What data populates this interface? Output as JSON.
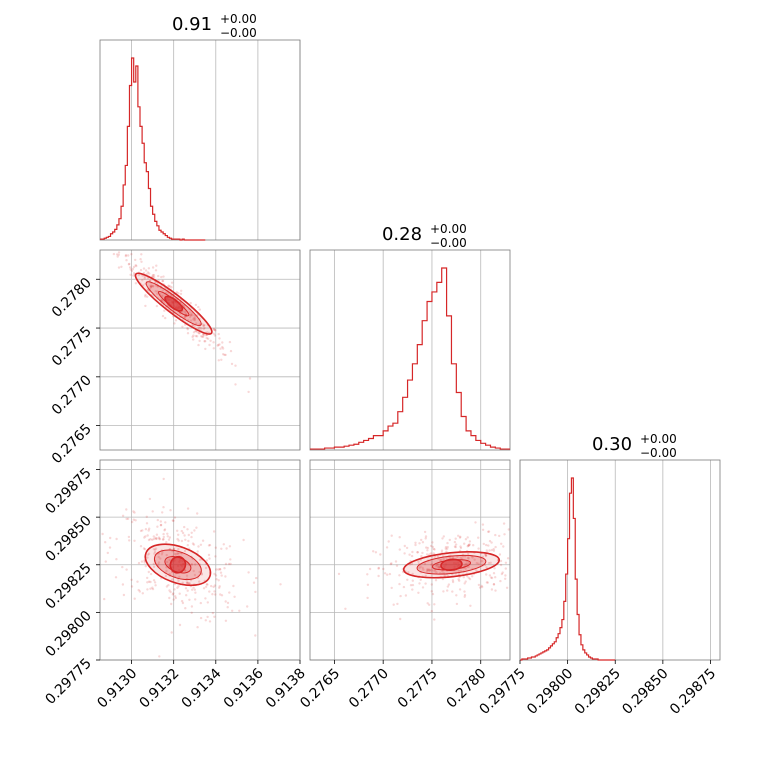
{
  "chart_data": {
    "type": "scatter",
    "plot_kind": "corner",
    "grid": true,
    "color": "#d62728",
    "parameters": [
      {
        "title_value": "0.91",
        "upper": "+0.00",
        "lower": "−0.00",
        "range": [
          0.91285,
          0.9138
        ],
        "ticks": [
          0.913,
          0.9132,
          0.9134,
          0.9136,
          0.9138
        ],
        "tick_labels": [
          "0.9130",
          "0.9132",
          "0.9134",
          "0.9136",
          "0.9138"
        ]
      },
      {
        "title_value": "0.28",
        "upper": "+0.00",
        "lower": "−0.00",
        "range": [
          0.27625,
          0.2783
        ],
        "ticks": [
          0.2765,
          0.277,
          0.2775,
          0.278
        ],
        "tick_labels": [
          "0.2765",
          "0.2770",
          "0.2775",
          "0.2780"
        ]
      },
      {
        "title_value": "0.30",
        "upper": "+0.00",
        "lower": "−0.00",
        "range": [
          0.29775,
          0.2988
        ],
        "ticks": [
          0.29775,
          0.298,
          0.29825,
          0.2985,
          0.29875
        ],
        "tick_labels": [
          "0.29775",
          "0.29800",
          "0.29825",
          "0.29850",
          "0.29875"
        ]
      }
    ],
    "histograms": [
      {
        "param": 0,
        "bin_width": 1e-05,
        "start": 0.91285,
        "counts": [
          1,
          1,
          2,
          3,
          4,
          7,
          9,
          12,
          17,
          24,
          38,
          62,
          84,
          128,
          174,
          205,
          178,
          196,
          150,
          128,
          109,
          87,
          77,
          58,
          38,
          29,
          21,
          16,
          11,
          9,
          7,
          5,
          3,
          2,
          1,
          1,
          1,
          1,
          0,
          1,
          0,
          0,
          0,
          0,
          0,
          0,
          0,
          0,
          0,
          0
        ]
      },
      {
        "param": 1,
        "bin_width": 5e-05,
        "start": 0.27625,
        "counts": [
          1,
          1,
          1,
          2,
          2,
          3,
          3,
          4,
          5,
          6,
          8,
          10,
          12,
          15,
          15,
          20,
          25,
          28,
          40,
          55,
          73,
          90,
          110,
          135,
          155,
          165,
          175,
          190,
          140,
          90,
          60,
          35,
          20,
          15,
          10,
          7,
          5,
          3,
          2,
          1,
          1
        ]
      },
      {
        "param": 2,
        "bin_width": 1e-05,
        "start": 0.29775,
        "counts": [
          0,
          1,
          1,
          1,
          2,
          2,
          3,
          3,
          4,
          5,
          6,
          7,
          8,
          9,
          10,
          12,
          14,
          16,
          18,
          22,
          26,
          32,
          40,
          58,
          85,
          120,
          165,
          180,
          140,
          80,
          45,
          25,
          15,
          10,
          7,
          5,
          3,
          2,
          1,
          1,
          1,
          0,
          0,
          0,
          0,
          0,
          0,
          0,
          0,
          0
        ]
      }
    ],
    "correlations": [
      {
        "x_param": 0,
        "y_param": 1,
        "center": [
          0.9132,
          0.27775
        ],
        "corr": -0.95
      },
      {
        "x_param": 0,
        "y_param": 2,
        "center": [
          0.91322,
          0.29825
        ],
        "corr": -0.45
      },
      {
        "x_param": 1,
        "y_param": 2,
        "center": [
          0.2777,
          0.29825
        ],
        "corr": 0.3
      }
    ]
  }
}
